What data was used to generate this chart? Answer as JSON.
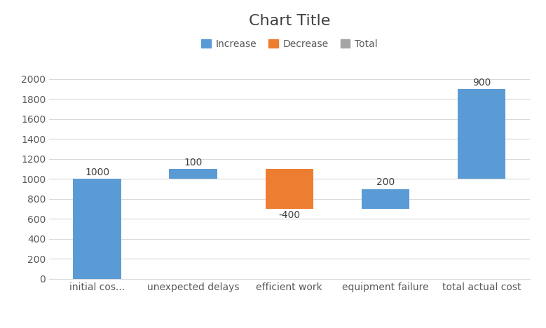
{
  "title": "Chart Title",
  "categories": [
    "initial cos...",
    "unexpected delays",
    "efficient work",
    "equipment failure",
    "total actual cost"
  ],
  "values": [
    1000,
    100,
    -400,
    200,
    900
  ],
  "types": [
    "total",
    "increase",
    "decrease",
    "increase",
    "increase"
  ],
  "labels": [
    "1000",
    "100",
    "-400",
    "200",
    "900"
  ],
  "color_increase": "#5b9bd5",
  "color_decrease": "#ed7d31",
  "color_total": "#a5a5a5",
  "legend_labels": [
    "Increase",
    "Decrease",
    "Total"
  ],
  "bottoms": [
    0,
    1000,
    700,
    700,
    1000
  ],
  "heights": [
    1000,
    100,
    400,
    200,
    900
  ],
  "bar_colors": [
    "#5b9bd5",
    "#5b9bd5",
    "#ed7d31",
    "#5b9bd5",
    "#5b9bd5"
  ],
  "label_values": [
    1000,
    100,
    -400,
    200,
    900
  ],
  "ylim": [
    0,
    2200
  ],
  "yticks": [
    0,
    200,
    400,
    600,
    800,
    1000,
    1200,
    1400,
    1600,
    1800,
    2000
  ],
  "background_color": "#ffffff",
  "title_fontsize": 16,
  "label_fontsize": 10,
  "tick_fontsize": 10,
  "legend_fontsize": 10,
  "bar_width": 0.5,
  "gridcolor": "#d9d9d9",
  "text_color": "#595959",
  "label_color": "#404040"
}
